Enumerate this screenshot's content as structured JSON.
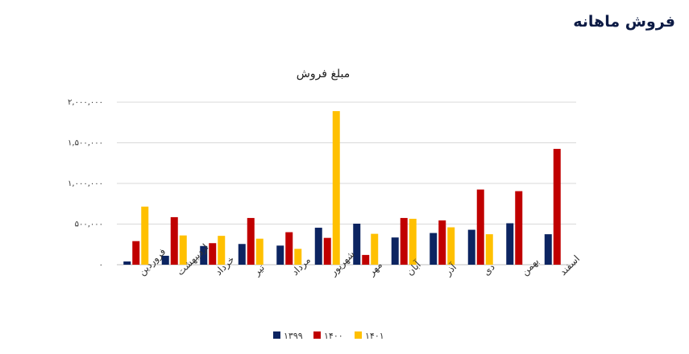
{
  "page": {
    "title": "فروش ماهانه"
  },
  "chart_data": {
    "type": "bar",
    "title": "مبلغ فروش",
    "xlabel": "",
    "ylabel": "",
    "categories": [
      "فروردین",
      "اردیبهشت",
      "خرداد",
      "تیر",
      "مرداد",
      "شهریور",
      "مهر",
      "آبان",
      "آذر",
      "دی",
      "بهمن",
      "اسفند"
    ],
    "series": [
      {
        "name": "۱۳۹۹",
        "color": "#0c2461",
        "values": [
          40000,
          110000,
          230000,
          255000,
          235000,
          455000,
          505000,
          335000,
          390000,
          430000,
          510000,
          375000
        ]
      },
      {
        "name": "۱۴۰۰",
        "color": "#c00000",
        "values": [
          290000,
          585000,
          265000,
          575000,
          400000,
          330000,
          120000,
          575000,
          545000,
          925000,
          905000,
          1425000
        ]
      },
      {
        "name": "۱۴۰۱",
        "color": "#ffc000",
        "values": [
          715000,
          360000,
          355000,
          320000,
          195000,
          1890000,
          380000,
          565000,
          460000,
          375000,
          null,
          null
        ]
      }
    ],
    "ylim": [
      0,
      2000000
    ],
    "yticks": [
      {
        "value": 0,
        "label": "۰"
      },
      {
        "value": 500000,
        "label": "۵۰۰,۰۰۰"
      },
      {
        "value": 1000000,
        "label": "۱,۰۰۰,۰۰۰"
      },
      {
        "value": 1500000,
        "label": "۱,۵۰۰,۰۰۰"
      },
      {
        "value": 2000000,
        "label": "۲,۰۰۰,۰۰۰"
      }
    ],
    "grid": true,
    "legend": "bottom-center"
  }
}
